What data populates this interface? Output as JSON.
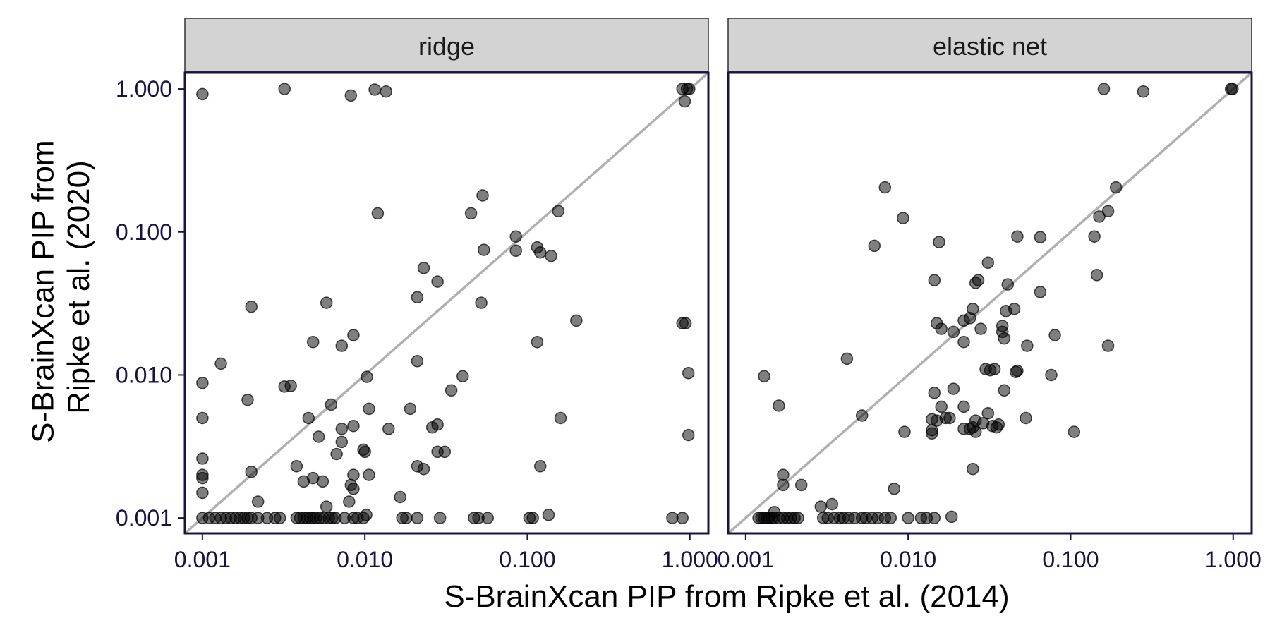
{
  "chart_data": {
    "type": "scatter",
    "xlabel": "S-BrainXcan PIP from Ripke et al. (2014)",
    "ylabel": "S-BrainXcan PIP from Ripke et al. (2020)",
    "x_scale": "log10",
    "y_scale": "log10",
    "xlim": [
      0.00078,
      1.3
    ],
    "ylim": [
      0.00078,
      1.3
    ],
    "x_ticks": [
      0.001,
      0.01,
      0.1,
      1.0
    ],
    "y_ticks": [
      0.001,
      0.01,
      0.1,
      1.0
    ],
    "x_tick_labels": [
      "0.001",
      "0.010",
      "0.100",
      "1.000"
    ],
    "y_tick_labels": [
      "0.001",
      "0.010",
      "0.100",
      "1.000"
    ],
    "reference_line": "y = x",
    "grid": false,
    "colors": {
      "point_fill": "#000000",
      "point_opacity": 0.5,
      "diagonal": "#b0b0b0",
      "strip_background": "#d3d3d3",
      "frame": "#1a1342",
      "tick_text": "#1a1342"
    },
    "panels": [
      {
        "title": "ridge",
        "points": [
          [
            0.001,
            0.92
          ],
          [
            0.0032,
            1.0
          ],
          [
            0.0082,
            0.9
          ],
          [
            0.0115,
            0.99
          ],
          [
            0.0135,
            0.96
          ],
          [
            0.9,
            1.0
          ],
          [
            0.96,
            1.0
          ],
          [
            0.99,
            1.0
          ],
          [
            0.93,
            0.82
          ],
          [
            0.053,
            0.18
          ],
          [
            0.155,
            0.14
          ],
          [
            0.012,
            0.135
          ],
          [
            0.045,
            0.135
          ],
          [
            0.085,
            0.093
          ],
          [
            0.115,
            0.078
          ],
          [
            0.12,
            0.072
          ],
          [
            0.14,
            0.068
          ],
          [
            0.085,
            0.074
          ],
          [
            0.054,
            0.075
          ],
          [
            0.023,
            0.056
          ],
          [
            0.028,
            0.045
          ],
          [
            0.021,
            0.035
          ],
          [
            0.052,
            0.032
          ],
          [
            0.0058,
            0.032
          ],
          [
            0.002,
            0.03
          ],
          [
            0.2,
            0.024
          ],
          [
            0.9,
            0.023
          ],
          [
            0.94,
            0.023
          ],
          [
            0.0085,
            0.019
          ],
          [
            0.0048,
            0.017
          ],
          [
            0.0072,
            0.016
          ],
          [
            0.115,
            0.017
          ],
          [
            0.021,
            0.0125
          ],
          [
            0.0013,
            0.012
          ],
          [
            0.0103,
            0.0097
          ],
          [
            0.04,
            0.0098
          ],
          [
            0.001,
            0.0088
          ],
          [
            0.0032,
            0.0083
          ],
          [
            0.0035,
            0.0084
          ],
          [
            0.034,
            0.0078
          ],
          [
            0.98,
            0.0103
          ],
          [
            0.0019,
            0.0067
          ],
          [
            0.0062,
            0.0062
          ],
          [
            0.0106,
            0.0058
          ],
          [
            0.019,
            0.0058
          ],
          [
            0.0045,
            0.005
          ],
          [
            0.001,
            0.005
          ],
          [
            0.16,
            0.005
          ],
          [
            0.028,
            0.0045
          ],
          [
            0.026,
            0.0043
          ],
          [
            0.014,
            0.0042
          ],
          [
            0.0072,
            0.0042
          ],
          [
            0.0085,
            0.0044
          ],
          [
            0.0052,
            0.0037
          ],
          [
            0.0072,
            0.0034
          ],
          [
            0.98,
            0.0038
          ],
          [
            0.0098,
            0.003
          ],
          [
            0.01,
            0.0029
          ],
          [
            0.0067,
            0.0028
          ],
          [
            0.028,
            0.0029
          ],
          [
            0.031,
            0.0029
          ],
          [
            0.001,
            0.0026
          ],
          [
            0.0038,
            0.0023
          ],
          [
            0.021,
            0.0023
          ],
          [
            0.023,
            0.0022
          ],
          [
            0.12,
            0.0023
          ],
          [
            0.002,
            0.0021
          ],
          [
            0.0106,
            0.002
          ],
          [
            0.0085,
            0.002
          ],
          [
            0.001,
            0.002
          ],
          [
            0.001,
            0.0019
          ],
          [
            0.0042,
            0.0018
          ],
          [
            0.0048,
            0.0019
          ],
          [
            0.0055,
            0.0018
          ],
          [
            0.0082,
            0.0017
          ],
          [
            0.0085,
            0.0016
          ],
          [
            0.001,
            0.0015
          ],
          [
            0.0022,
            0.0013
          ],
          [
            0.008,
            0.0013
          ],
          [
            0.0165,
            0.0014
          ],
          [
            0.0058,
            0.0012
          ],
          [
            0.001,
            0.001
          ],
          [
            0.0011,
            0.001
          ],
          [
            0.0012,
            0.001
          ],
          [
            0.0013,
            0.001
          ],
          [
            0.0014,
            0.001
          ],
          [
            0.0015,
            0.001
          ],
          [
            0.0016,
            0.001
          ],
          [
            0.0017,
            0.001
          ],
          [
            0.0018,
            0.001
          ],
          [
            0.0019,
            0.001
          ],
          [
            0.002,
            0.001
          ],
          [
            0.0022,
            0.001
          ],
          [
            0.0025,
            0.001
          ],
          [
            0.0028,
            0.001
          ],
          [
            0.003,
            0.001
          ],
          [
            0.0038,
            0.001
          ],
          [
            0.004,
            0.001
          ],
          [
            0.0042,
            0.001
          ],
          [
            0.0044,
            0.001
          ],
          [
            0.0046,
            0.001
          ],
          [
            0.0048,
            0.001
          ],
          [
            0.005,
            0.001
          ],
          [
            0.0053,
            0.001
          ],
          [
            0.0056,
            0.001
          ],
          [
            0.006,
            0.001
          ],
          [
            0.0063,
            0.001
          ],
          [
            0.0066,
            0.001
          ],
          [
            0.0075,
            0.001
          ],
          [
            0.0085,
            0.001
          ],
          [
            0.009,
            0.001
          ],
          [
            0.0098,
            0.001
          ],
          [
            0.0102,
            0.00105
          ],
          [
            0.017,
            0.001
          ],
          [
            0.018,
            0.001
          ],
          [
            0.021,
            0.001
          ],
          [
            0.029,
            0.001
          ],
          [
            0.047,
            0.001
          ],
          [
            0.05,
            0.001
          ],
          [
            0.057,
            0.001
          ],
          [
            0.103,
            0.001
          ],
          [
            0.108,
            0.001
          ],
          [
            0.135,
            0.00105
          ],
          [
            0.78,
            0.001
          ],
          [
            0.9,
            0.001
          ]
        ]
      },
      {
        "title": "elastic net",
        "points": [
          [
            0.16,
            1.0
          ],
          [
            0.28,
            0.96
          ],
          [
            0.97,
            1.0
          ],
          [
            0.99,
            1.0
          ],
          [
            0.0072,
            0.205
          ],
          [
            0.0093,
            0.125
          ],
          [
            0.19,
            0.205
          ],
          [
            0.15,
            0.128
          ],
          [
            0.17,
            0.14
          ],
          [
            0.0062,
            0.08
          ],
          [
            0.0155,
            0.085
          ],
          [
            0.047,
            0.093
          ],
          [
            0.065,
            0.092
          ],
          [
            0.14,
            0.093
          ],
          [
            0.031,
            0.061
          ],
          [
            0.065,
            0.038
          ],
          [
            0.145,
            0.05
          ],
          [
            0.0145,
            0.046
          ],
          [
            0.026,
            0.044
          ],
          [
            0.027,
            0.046
          ],
          [
            0.041,
            0.043
          ],
          [
            0.04,
            0.028
          ],
          [
            0.045,
            0.029
          ],
          [
            0.025,
            0.029
          ],
          [
            0.022,
            0.024
          ],
          [
            0.024,
            0.025
          ],
          [
            0.015,
            0.023
          ],
          [
            0.016,
            0.021
          ],
          [
            0.038,
            0.022
          ],
          [
            0.038,
            0.02
          ],
          [
            0.028,
            0.021
          ],
          [
            0.019,
            0.02
          ],
          [
            0.022,
            0.017
          ],
          [
            0.039,
            0.018
          ],
          [
            0.08,
            0.019
          ],
          [
            0.17,
            0.016
          ],
          [
            0.054,
            0.016
          ],
          [
            0.0042,
            0.013
          ],
          [
            0.034,
            0.011
          ],
          [
            0.03,
            0.011
          ],
          [
            0.032,
            0.0108
          ],
          [
            0.046,
            0.0105
          ],
          [
            0.047,
            0.0107
          ],
          [
            0.076,
            0.01
          ],
          [
            0.0013,
            0.0098
          ],
          [
            0.019,
            0.008
          ],
          [
            0.039,
            0.0078
          ],
          [
            0.0145,
            0.0075
          ],
          [
            0.0016,
            0.0061
          ],
          [
            0.016,
            0.006
          ],
          [
            0.022,
            0.006
          ],
          [
            0.031,
            0.0054
          ],
          [
            0.017,
            0.005
          ],
          [
            0.018,
            0.005
          ],
          [
            0.014,
            0.0049
          ],
          [
            0.015,
            0.0048
          ],
          [
            0.026,
            0.0048
          ],
          [
            0.0052,
            0.0052
          ],
          [
            0.053,
            0.005
          ],
          [
            0.029,
            0.0046
          ],
          [
            0.033,
            0.0044
          ],
          [
            0.035,
            0.0043
          ],
          [
            0.036,
            0.0045
          ],
          [
            0.014,
            0.0041
          ],
          [
            0.014,
            0.0039
          ],
          [
            0.0095,
            0.004
          ],
          [
            0.022,
            0.0042
          ],
          [
            0.024,
            0.0042
          ],
          [
            0.025,
            0.0043
          ],
          [
            0.026,
            0.004
          ],
          [
            0.105,
            0.004
          ],
          [
            0.025,
            0.0022
          ],
          [
            0.0017,
            0.002
          ],
          [
            0.0017,
            0.0017
          ],
          [
            0.0022,
            0.0017
          ],
          [
            0.0082,
            0.0016
          ],
          [
            0.0029,
            0.0012
          ],
          [
            0.0034,
            0.00125
          ],
          [
            0.0015,
            0.0011
          ],
          [
            0.0012,
            0.001
          ],
          [
            0.00125,
            0.001
          ],
          [
            0.0013,
            0.001
          ],
          [
            0.00135,
            0.001
          ],
          [
            0.0014,
            0.001
          ],
          [
            0.00145,
            0.001
          ],
          [
            0.0015,
            0.001
          ],
          [
            0.0016,
            0.001
          ],
          [
            0.0017,
            0.001
          ],
          [
            0.0018,
            0.001
          ],
          [
            0.0019,
            0.001
          ],
          [
            0.002,
            0.001
          ],
          [
            0.0021,
            0.001
          ],
          [
            0.003,
            0.001
          ],
          [
            0.0032,
            0.001
          ],
          [
            0.0035,
            0.001
          ],
          [
            0.0038,
            0.001
          ],
          [
            0.004,
            0.001
          ],
          [
            0.0043,
            0.001
          ],
          [
            0.0047,
            0.001
          ],
          [
            0.0052,
            0.001
          ],
          [
            0.0055,
            0.001
          ],
          [
            0.006,
            0.001
          ],
          [
            0.0065,
            0.001
          ],
          [
            0.0072,
            0.001
          ],
          [
            0.0078,
            0.001
          ],
          [
            0.01,
            0.001
          ],
          [
            0.012,
            0.001
          ],
          [
            0.013,
            0.001
          ],
          [
            0.0145,
            0.001
          ],
          [
            0.0185,
            0.00102
          ]
        ]
      }
    ]
  }
}
